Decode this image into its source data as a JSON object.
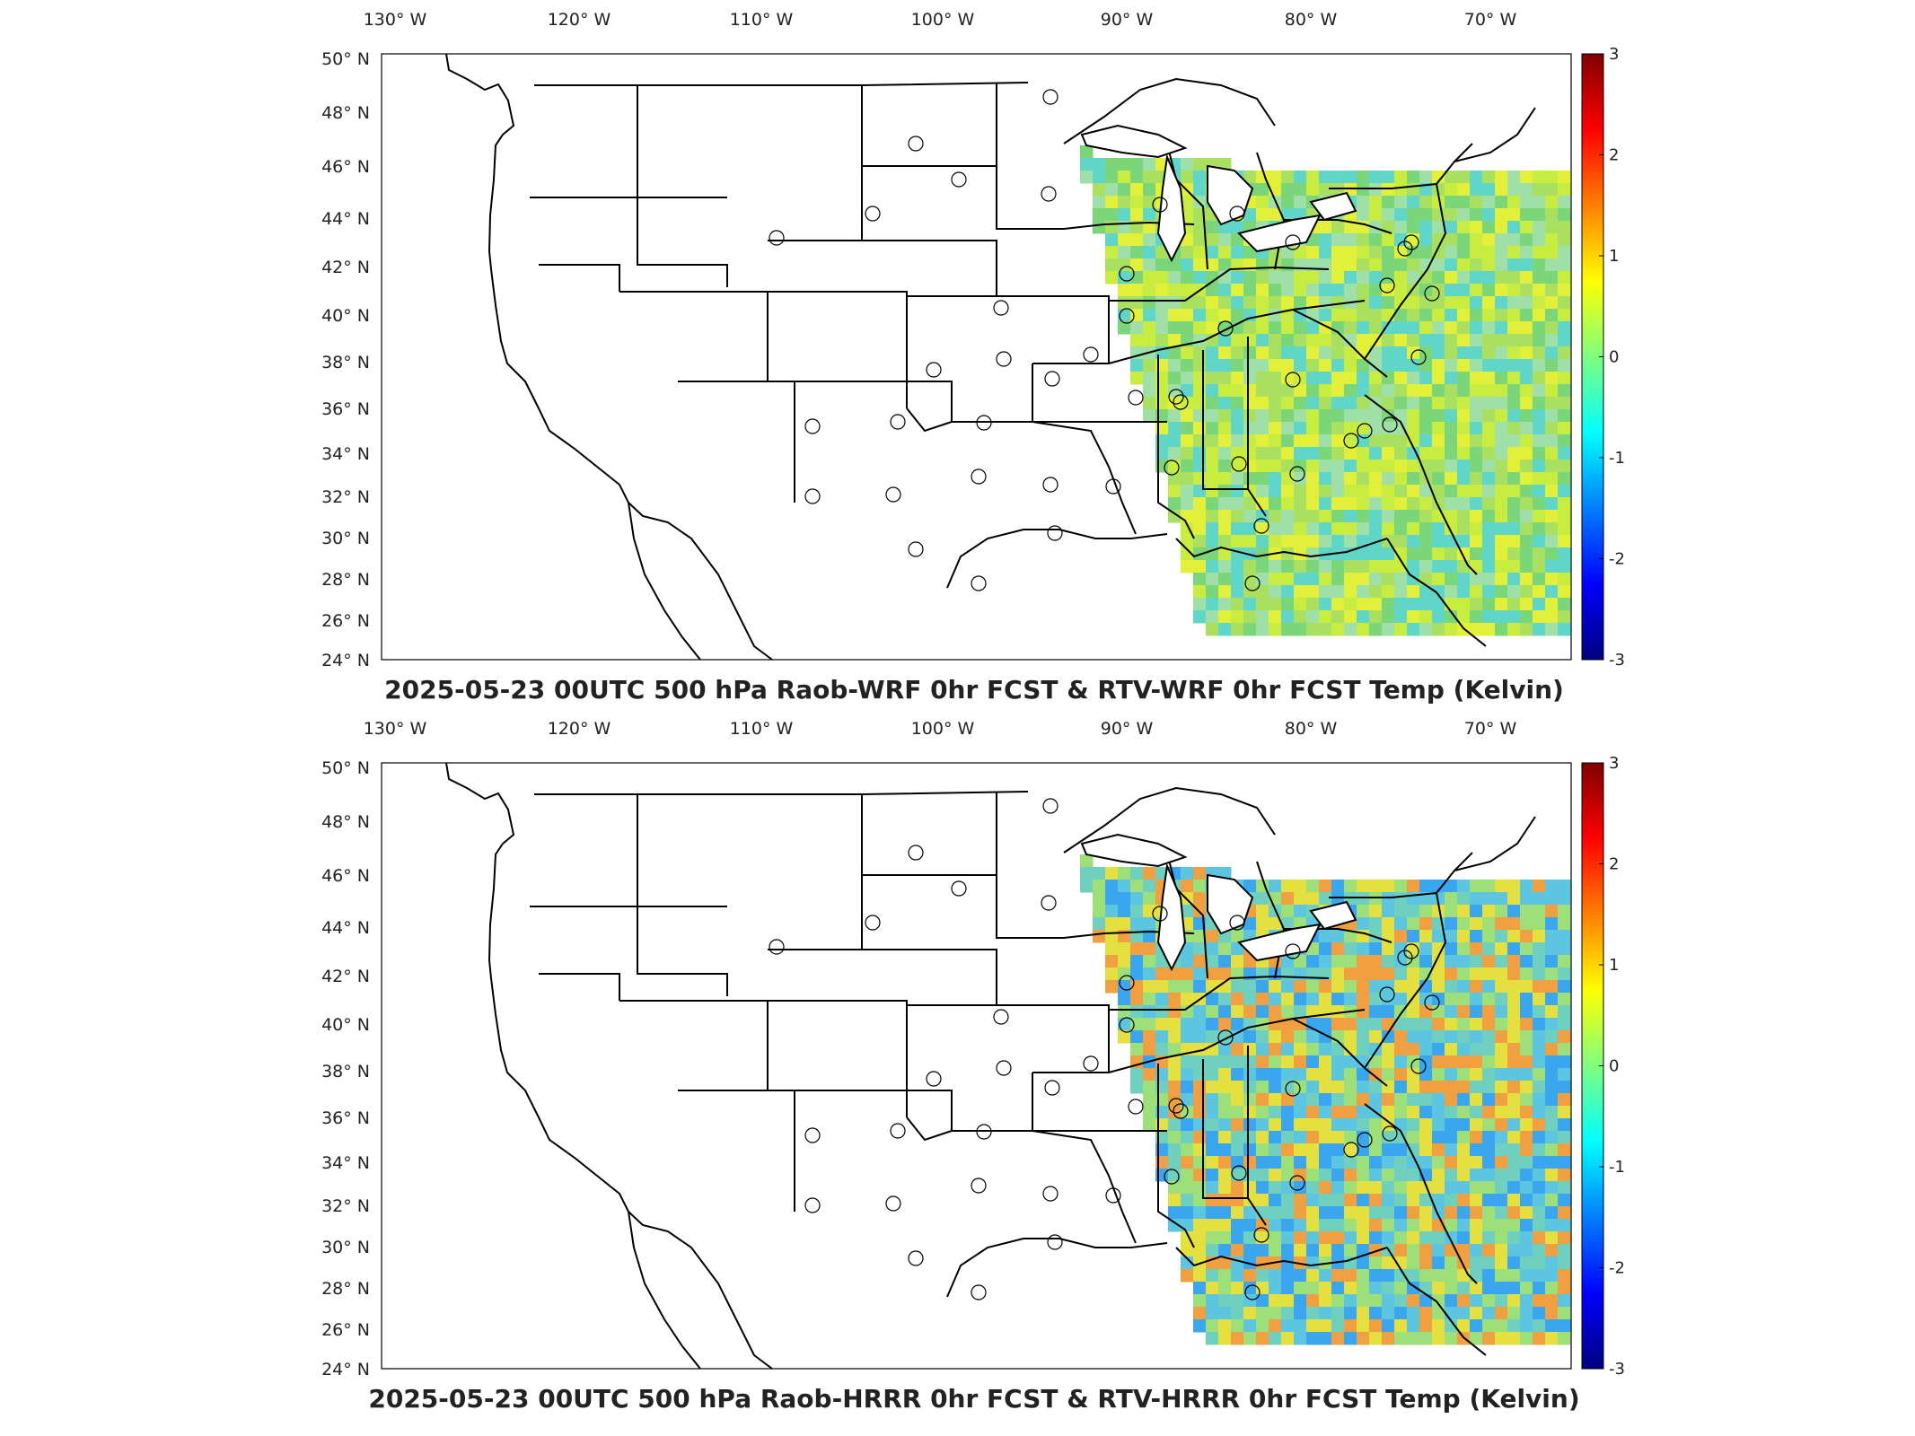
{
  "panels": [
    {
      "title": "2025-05-23 00UTC 500 hPa Raob-WRF 0hr FCST & RTV-WRF 0hr FCST Temp (Kelvin)",
      "lon_labels": [
        "130",
        "120",
        "110",
        "100",
        "90",
        "80",
        "70"
      ],
      "lon_hemisphere": "W",
      "lat_labels": [
        "50",
        "48",
        "46",
        "44",
        "42",
        "40",
        "38",
        "36",
        "34",
        "32",
        "30",
        "28",
        "26",
        "24"
      ],
      "lat_hemisphere": "N",
      "colorbar_ticks": [
        "3",
        "2",
        "1",
        "0",
        "-1",
        "-2",
        "-3"
      ],
      "field_palette": [
        "#7bd67a",
        "#a9e060",
        "#c8ec40",
        "#e3f03a",
        "#9fe0a8",
        "#5fd6c8"
      ]
    },
    {
      "title": "2025-05-23 00UTC 500 hPa Raob-HRRR 0hr FCST & RTV-HRRR 0hr FCST Temp (Kelvin)",
      "lon_labels": [
        "130",
        "120",
        "110",
        "100",
        "90",
        "80",
        "70"
      ],
      "lon_hemisphere": "W",
      "lat_labels": [
        "50",
        "48",
        "46",
        "44",
        "42",
        "40",
        "38",
        "36",
        "34",
        "32",
        "30",
        "28",
        "26",
        "24"
      ],
      "lat_hemisphere": "N",
      "colorbar_ticks": [
        "3",
        "2",
        "1",
        "0",
        "-1",
        "-2",
        "-3"
      ],
      "field_palette": [
        "#6fd0c0",
        "#5cc6e0",
        "#3aa6f0",
        "#9de07a",
        "#e3e040",
        "#f0a040"
      ]
    }
  ],
  "degree_symbol": "°",
  "colors": {
    "colormap": [
      "#00007f",
      "#0000ff",
      "#007fff",
      "#00ffff",
      "#7fff7f",
      "#ffff00",
      "#ff7f00",
      "#ff0000",
      "#7f0000"
    ],
    "outline": "#000000"
  }
}
